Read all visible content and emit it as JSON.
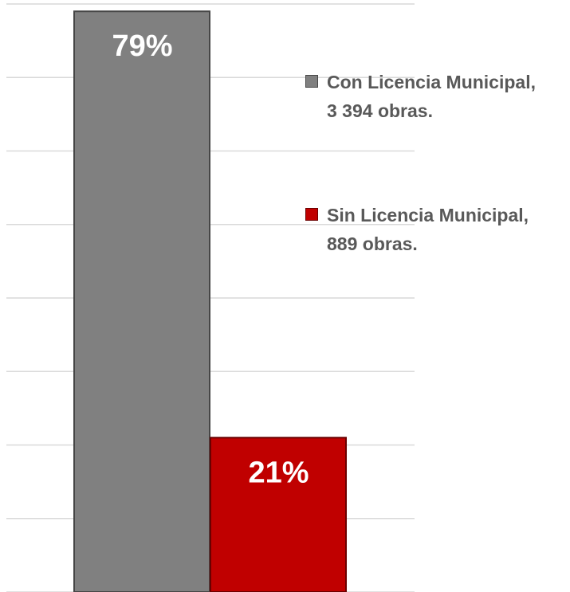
{
  "chart_data": {
    "type": "bar",
    "categories": [
      null
    ],
    "series": [
      {
        "name": "Con Licencia Municipal, 3 394 obras.",
        "color": "#808080",
        "values": [
          79
        ],
        "value_labels": [
          "79%"
        ]
      },
      {
        "name": "Sin Licencia Municipal, 889 obras.",
        "color": "#c00000",
        "values": [
          21
        ],
        "value_labels": [
          "21%"
        ]
      }
    ],
    "ylim": [
      0,
      80
    ],
    "yticks": [
      0,
      10,
      20,
      30,
      40,
      50,
      60,
      70,
      80
    ],
    "grid": true,
    "legend": "right"
  }
}
